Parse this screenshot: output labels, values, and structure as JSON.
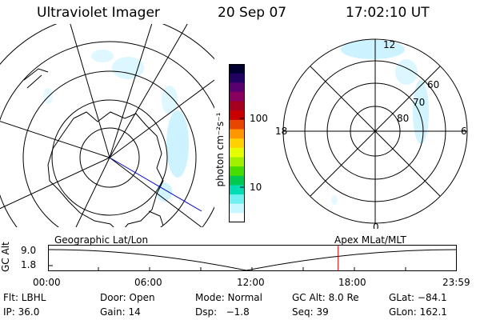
{
  "header": {
    "instrument": "Ultraviolet Imager",
    "date": "20 Sep 07",
    "time": "17:02:10 UT"
  },
  "colorbar": {
    "label": "photon cm⁻²s⁻¹",
    "ticks": [
      "100",
      "10"
    ],
    "colors": [
      "#000030",
      "#200060",
      "#5a006e",
      "#880060",
      "#a50020",
      "#c80000",
      "#e64600",
      "#ff9600",
      "#ffd200",
      "#e6ff00",
      "#a0f000",
      "#46dc00",
      "#00c850",
      "#00dcb4",
      "#70f0f0",
      "#c8f8ff",
      "#ffffff"
    ]
  },
  "left_map": {
    "projection": "Geographic Lat/Lon",
    "aurora_color": "#bff0ff"
  },
  "right_map": {
    "projection": "Apex MLat/MLT",
    "mlt_labels": [
      "12",
      "18",
      "6",
      "0"
    ],
    "mlat_labels": [
      "60",
      "70",
      "80"
    ]
  },
  "altitude_plot": {
    "axis_label": "GC Alt",
    "ticks": [
      "9.0",
      "1.8"
    ],
    "time_labels": [
      "00:00",
      "06:00",
      "12:00",
      "18:00",
      "23:59"
    ],
    "marker_color": "#cc0000",
    "marker_fraction": 0.7098
  },
  "footer": {
    "row1": {
      "filter": "Flt: LBHL",
      "door": "Door: Open",
      "mode": "Mode: Normal",
      "gc_alt": "GC Alt: 8.0 Re",
      "glat": "GLat: −84.1"
    },
    "row2": {
      "ip": "IP: 36.0",
      "gain": "Gain: 14",
      "dsp": "Dsp:   −1.8",
      "seq": "Seq: 39",
      "glon": "GLon: 162.1"
    }
  }
}
